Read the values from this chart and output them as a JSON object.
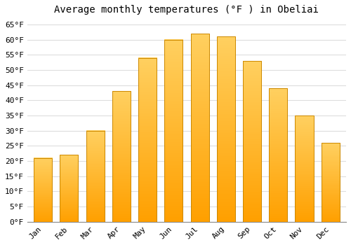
{
  "title": "Average monthly temperatures (°F ) in Obeliai",
  "months": [
    "Jan",
    "Feb",
    "Mar",
    "Apr",
    "May",
    "Jun",
    "Jul",
    "Aug",
    "Sep",
    "Oct",
    "Nov",
    "Dec"
  ],
  "values": [
    21,
    22,
    30,
    43,
    54,
    60,
    62,
    61,
    53,
    44,
    35,
    26
  ],
  "bar_color_top": "#FFD060",
  "bar_color_bottom": "#FFA000",
  "bar_edge_color": "#CC8800",
  "background_color": "#FFFFFF",
  "plot_bg_color": "#FFFFFF",
  "ylim": [
    0,
    67
  ],
  "yticks": [
    0,
    5,
    10,
    15,
    20,
    25,
    30,
    35,
    40,
    45,
    50,
    55,
    60,
    65
  ],
  "title_fontsize": 10,
  "tick_fontsize": 8,
  "grid_color": "#DDDDDD",
  "font_family": "monospace",
  "bar_width": 0.7
}
